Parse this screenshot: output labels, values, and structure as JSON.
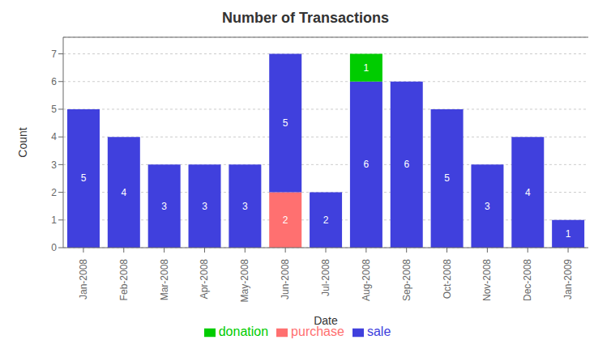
{
  "chart_data": {
    "type": "bar",
    "title": "Number of Transactions",
    "xlabel": "Date",
    "ylabel": "Count",
    "categories": [
      "Jan-2008",
      "Feb-2008",
      "Mar-2008",
      "Apr-2008",
      "May-2008",
      "Jun-2008",
      "Jul-2008",
      "Aug-2008",
      "Sep-2008",
      "Oct-2008",
      "Nov-2008",
      "Dec-2008",
      "Jan-2009"
    ],
    "series": [
      {
        "name": "purchase",
        "color": "#ff7070",
        "values": [
          0,
          0,
          0,
          0,
          0,
          2,
          0,
          0,
          0,
          0,
          0,
          0,
          0
        ]
      },
      {
        "name": "sale",
        "color": "#4040dd",
        "values": [
          5,
          4,
          3,
          3,
          3,
          5,
          2,
          6,
          6,
          5,
          3,
          4,
          1
        ]
      },
      {
        "name": "donation",
        "color": "#00cc00",
        "values": [
          0,
          0,
          0,
          0,
          0,
          0,
          0,
          1,
          0,
          0,
          0,
          0,
          0
        ]
      }
    ],
    "stacked": true,
    "data_labels": true,
    "ylim": [
      0,
      7.6
    ],
    "yticks": [
      0,
      1,
      2,
      3,
      4,
      5,
      6,
      7
    ],
    "grid": true,
    "legend": "bottom"
  }
}
